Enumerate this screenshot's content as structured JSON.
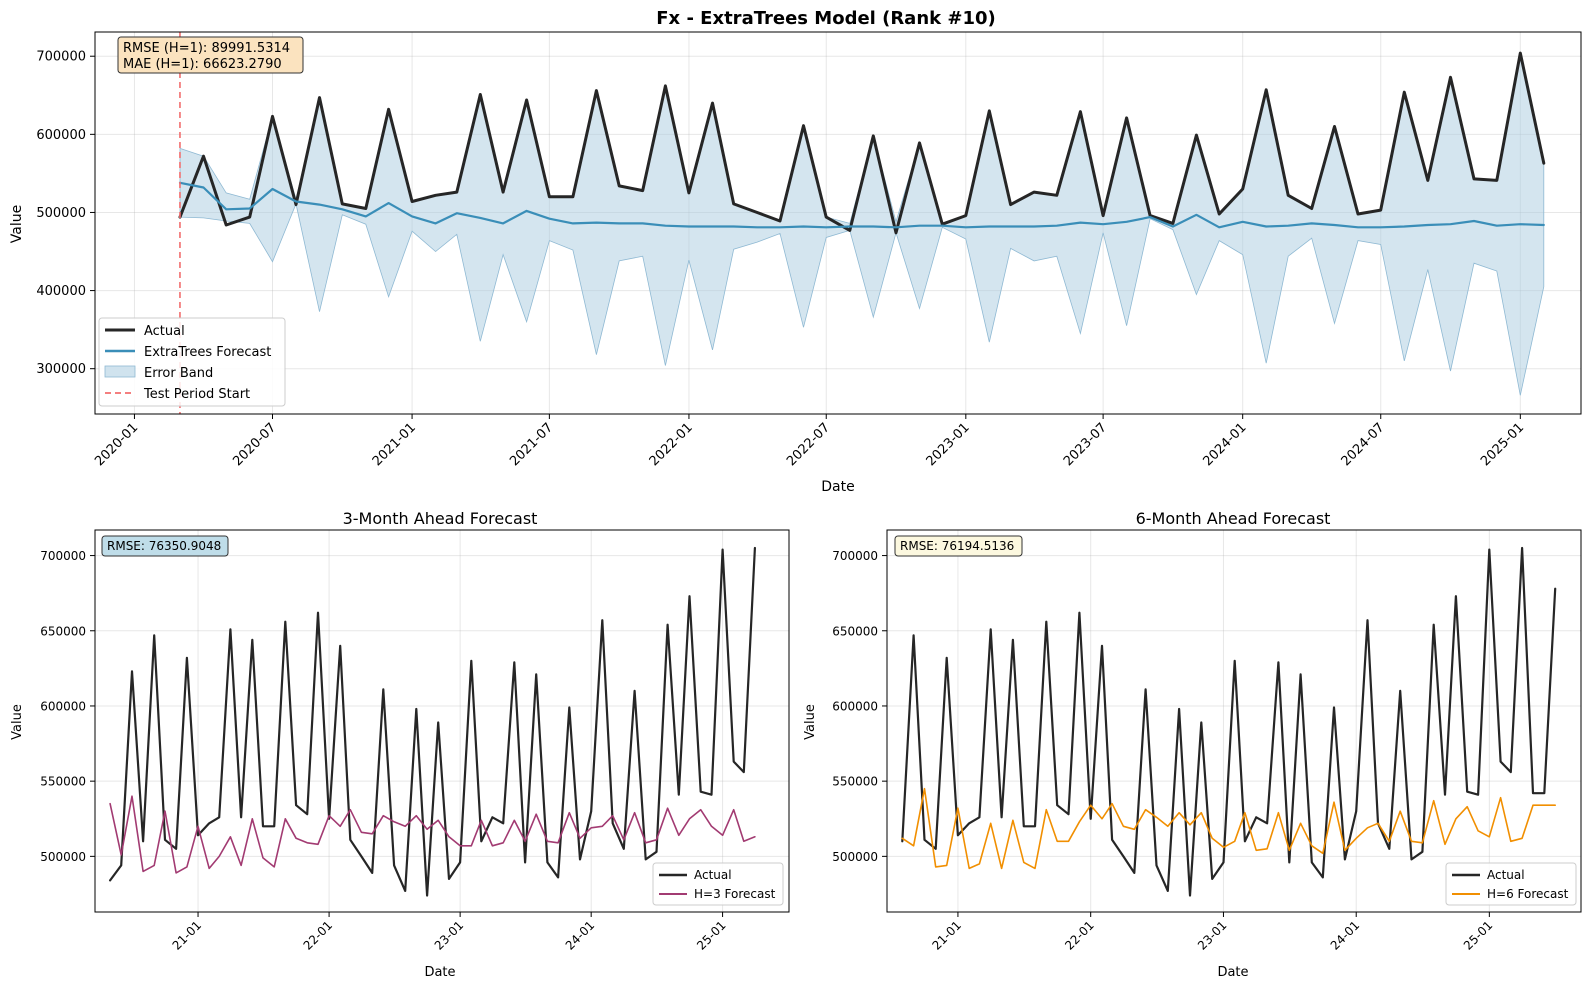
{
  "chart_data": [
    {
      "type": "line",
      "title": "Fx - ExtraTrees Model (Rank #10)",
      "xlabel": "Date",
      "ylabel": "Value",
      "xlim": [
        "2019-11-10",
        "2025-03-22"
      ],
      "ylim": [
        242000,
        731000
      ],
      "x_ticks": [
        "2020-01",
        "2020-07",
        "2021-01",
        "2021-07",
        "2022-01",
        "2022-07",
        "2023-01",
        "2023-07",
        "2024-01",
        "2024-07",
        "2025-01"
      ],
      "y_ticks": [
        300000,
        400000,
        500000,
        600000,
        700000
      ],
      "grid": true,
      "legend_position": "lower-left",
      "legend": [
        "Actual",
        "ExtraTrees Forecast",
        "Error Band",
        "Test Period Start"
      ],
      "annotation": [
        "RMSE (H=1): 89991.5314",
        "MAE (H=1): 66623.2790"
      ],
      "test_period_start": "2020-03",
      "x": [
        "2020-03",
        "2020-04",
        "2020-05",
        "2020-06",
        "2020-07",
        "2020-08",
        "2020-09",
        "2020-10",
        "2020-11",
        "2020-12",
        "2021-01",
        "2021-02",
        "2021-03",
        "2021-04",
        "2021-05",
        "2021-06",
        "2021-07",
        "2021-08",
        "2021-09",
        "2021-10",
        "2021-11",
        "2021-12",
        "2022-01",
        "2022-02",
        "2022-03",
        "2022-04",
        "2022-05",
        "2022-06",
        "2022-07",
        "2022-08",
        "2022-09",
        "2022-10",
        "2022-11",
        "2022-12",
        "2023-01",
        "2023-02",
        "2023-03",
        "2023-04",
        "2023-05",
        "2023-06",
        "2023-07",
        "2023-08",
        "2023-09",
        "2023-10",
        "2023-11",
        "2023-12",
        "2024-01",
        "2024-02",
        "2024-03",
        "2024-04",
        "2024-05",
        "2024-06",
        "2024-07",
        "2024-08",
        "2024-09",
        "2024-10",
        "2024-11",
        "2024-12",
        "2025-01",
        "2025-02"
      ],
      "series": [
        {
          "name": "Actual",
          "color": "#262626",
          "values": [
            494000,
            572000,
            484000,
            494000,
            623000,
            510000,
            647000,
            511000,
            505000,
            632000,
            514000,
            522000,
            526000,
            651000,
            526000,
            644000,
            520000,
            520000,
            656000,
            534000,
            528000,
            662000,
            525000,
            640000,
            511000,
            500000,
            489000,
            611000,
            494000,
            477000,
            598000,
            474000,
            589000,
            485000,
            496000,
            630000,
            510000,
            526000,
            522000,
            629000,
            496000,
            621000,
            496000,
            486000,
            599000,
            498000,
            530000,
            657000,
            522000,
            505000,
            610000,
            498000,
            503000,
            654000,
            541000,
            673000,
            543000,
            541000,
            704000,
            563000
          ]
        },
        {
          "name": "ExtraTrees Forecast",
          "color": "#3a8eb8",
          "values": [
            538000,
            532000,
            504000,
            505000,
            530000,
            514000,
            510000,
            504000,
            495000,
            512000,
            495000,
            486000,
            499000,
            493000,
            486000,
            502000,
            492000,
            486000,
            487000,
            486000,
            486000,
            483000,
            482000,
            482000,
            482000,
            481000,
            481000,
            482000,
            481000,
            482000,
            482000,
            481000,
            483000,
            483000,
            481000,
            482000,
            482000,
            482000,
            483000,
            487000,
            485000,
            488000,
            494000,
            482000,
            497000,
            481000,
            488000,
            482000,
            483000,
            486000,
            484000,
            481000,
            481000,
            482000,
            484000,
            485000,
            489000,
            483000,
            485000,
            484000
          ]
        },
        {
          "name": "Error Band",
          "color": "#a9cce0",
          "lower": [
            494000,
            493000,
            489000,
            486000,
            437000,
            511000,
            373000,
            497000,
            485000,
            392000,
            476000,
            450000,
            472000,
            335000,
            446000,
            360000,
            464000,
            452000,
            318000,
            438000,
            444000,
            304000,
            439000,
            324000,
            453000,
            462000,
            473000,
            353000,
            468000,
            477000,
            366000,
            474000,
            377000,
            481000,
            466000,
            334000,
            454000,
            438000,
            444000,
            345000,
            474000,
            355000,
            492000,
            478000,
            395000,
            464000,
            446000,
            307000,
            444000,
            467000,
            358000,
            464000,
            459000,
            310000,
            427000,
            297000,
            435000,
            425000,
            266000,
            405000
          ],
          "upper": [
            582000,
            572000,
            525000,
            517000,
            623000,
            517000,
            647000,
            511000,
            505000,
            632000,
            514000,
            522000,
            526000,
            651000,
            526000,
            644000,
            520000,
            520000,
            656000,
            534000,
            528000,
            662000,
            525000,
            640000,
            511000,
            500000,
            489000,
            611000,
            494000,
            486000,
            598000,
            488000,
            589000,
            485000,
            496000,
            630000,
            510000,
            526000,
            522000,
            629000,
            496000,
            621000,
            496000,
            486000,
            599000,
            498000,
            530000,
            657000,
            522000,
            505000,
            610000,
            498000,
            503000,
            654000,
            541000,
            673000,
            543000,
            541000,
            704000,
            563000
          ]
        }
      ]
    },
    {
      "type": "line",
      "title": "3-Month Ahead Forecast",
      "xlabel": "Date",
      "ylabel": "Value",
      "xlim": [
        "2020-03-20",
        "2025-07-05"
      ],
      "ylim": [
        463000,
        717000
      ],
      "x_ticks": [
        "21-01",
        "22-01",
        "23-01",
        "24-01",
        "25-01"
      ],
      "y_ticks": [
        500000,
        550000,
        600000,
        650000,
        700000
      ],
      "grid": true,
      "legend_position": "lower-right",
      "legend": [
        "Actual",
        "H=3 Forecast"
      ],
      "annotation": "RMSE: 76350.9048",
      "x": [
        "2020-05",
        "2020-06",
        "2020-07",
        "2020-08",
        "2020-09",
        "2020-10",
        "2020-11",
        "2020-12",
        "2021-01",
        "2021-02",
        "2021-03",
        "2021-04",
        "2021-05",
        "2021-06",
        "2021-07",
        "2021-08",
        "2021-09",
        "2021-10",
        "2021-11",
        "2021-12",
        "2022-01",
        "2022-02",
        "2022-03",
        "2022-04",
        "2022-05",
        "2022-06",
        "2022-07",
        "2022-08",
        "2022-09",
        "2022-10",
        "2022-11",
        "2022-12",
        "2023-01",
        "2023-02",
        "2023-03",
        "2023-04",
        "2023-05",
        "2023-06",
        "2023-07",
        "2023-08",
        "2023-09",
        "2023-10",
        "2023-11",
        "2023-12",
        "2024-01",
        "2024-02",
        "2024-03",
        "2024-04",
        "2024-05",
        "2024-06",
        "2024-07",
        "2024-08",
        "2024-09",
        "2024-10",
        "2024-11",
        "2024-12",
        "2025-01",
        "2025-02",
        "2025-03",
        "2025-04"
      ],
      "series": [
        {
          "name": "Actual",
          "color": "#262626",
          "values": [
            484000,
            494000,
            623000,
            510000,
            647000,
            511000,
            505000,
            632000,
            514000,
            522000,
            526000,
            651000,
            526000,
            644000,
            520000,
            520000,
            656000,
            534000,
            528000,
            662000,
            525000,
            640000,
            511000,
            500000,
            489000,
            611000,
            494000,
            477000,
            598000,
            474000,
            589000,
            485000,
            496000,
            630000,
            510000,
            526000,
            522000,
            629000,
            496000,
            621000,
            496000,
            486000,
            599000,
            498000,
            530000,
            657000,
            522000,
            505000,
            610000,
            498000,
            503000,
            654000,
            541000,
            673000,
            543000,
            541000,
            704000,
            563000,
            556000,
            705000
          ]
        },
        {
          "name": "H=3 Forecast",
          "color": "#a23b72",
          "values": [
            535000,
            501000,
            540000,
            490000,
            494000,
            530000,
            489000,
            493000,
            520000,
            492000,
            500000,
            513000,
            494000,
            525000,
            499000,
            493000,
            525000,
            512000,
            509000,
            508000,
            527000,
            520000,
            531000,
            516000,
            515000,
            527000,
            523000,
            520000,
            527000,
            518000,
            524000,
            513000,
            507000,
            507000,
            524000,
            507000,
            509000,
            524000,
            510000,
            528000,
            510000,
            509000,
            529000,
            512000,
            519000,
            520000,
            527000,
            511000,
            529000,
            509000,
            511000,
            532000,
            514000,
            525000,
            531000,
            520000,
            514000,
            531000,
            510000,
            513000
          ]
        }
      ]
    },
    {
      "type": "line",
      "title": "6-Month Ahead Forecast",
      "xlabel": "Date",
      "ylabel": "Value",
      "xlim": [
        "2020-06-20",
        "2025-09-10"
      ],
      "ylim": [
        463000,
        717000
      ],
      "x_ticks": [
        "21-01",
        "22-01",
        "23-01",
        "24-01",
        "25-01"
      ],
      "y_ticks": [
        500000,
        550000,
        600000,
        650000,
        700000
      ],
      "grid": true,
      "legend_position": "lower-right",
      "legend": [
        "Actual",
        "H=6 Forecast"
      ],
      "annotation": "RMSE: 76194.5136",
      "x": [
        "2020-08",
        "2020-09",
        "2020-10",
        "2020-11",
        "2020-12",
        "2021-01",
        "2021-02",
        "2021-03",
        "2021-04",
        "2021-05",
        "2021-06",
        "2021-07",
        "2021-08",
        "2021-09",
        "2021-10",
        "2021-11",
        "2021-12",
        "2022-01",
        "2022-02",
        "2022-03",
        "2022-04",
        "2022-05",
        "2022-06",
        "2022-07",
        "2022-08",
        "2022-09",
        "2022-10",
        "2022-11",
        "2022-12",
        "2023-01",
        "2023-02",
        "2023-03",
        "2023-04",
        "2023-05",
        "2023-06",
        "2023-07",
        "2023-08",
        "2023-09",
        "2023-10",
        "2023-11",
        "2023-12",
        "2024-01",
        "2024-02",
        "2024-03",
        "2024-04",
        "2024-05",
        "2024-06",
        "2024-07",
        "2024-08",
        "2024-09",
        "2024-10",
        "2024-11",
        "2024-12",
        "2025-01",
        "2025-02",
        "2025-03",
        "2025-04",
        "2025-05",
        "2025-06",
        "2025-07"
      ],
      "series": [
        {
          "name": "Actual",
          "color": "#262626",
          "values": [
            510000,
            647000,
            511000,
            505000,
            632000,
            514000,
            522000,
            526000,
            651000,
            526000,
            644000,
            520000,
            520000,
            656000,
            534000,
            528000,
            662000,
            525000,
            640000,
            511000,
            500000,
            489000,
            611000,
            494000,
            477000,
            598000,
            474000,
            589000,
            485000,
            496000,
            630000,
            510000,
            526000,
            522000,
            629000,
            496000,
            621000,
            496000,
            486000,
            599000,
            498000,
            530000,
            657000,
            522000,
            505000,
            610000,
            498000,
            503000,
            654000,
            541000,
            673000,
            543000,
            541000,
            704000,
            563000,
            556000,
            705000,
            542000,
            542000,
            678000
          ]
        },
        {
          "name": "H=6 Forecast",
          "color": "#f18f01",
          "values": [
            512000,
            507000,
            545000,
            493000,
            494000,
            532000,
            492000,
            495000,
            522000,
            492000,
            524000,
            496000,
            492000,
            531000,
            510000,
            510000,
            523000,
            534000,
            525000,
            535000,
            520000,
            518000,
            531000,
            526000,
            520000,
            529000,
            521000,
            529000,
            512000,
            506000,
            510000,
            529000,
            504000,
            505000,
            529000,
            504000,
            522000,
            507000,
            502000,
            536000,
            504000,
            512000,
            519000,
            522000,
            510000,
            530000,
            510000,
            509000,
            537000,
            508000,
            525000,
            533000,
            517000,
            513000,
            539000,
            510000,
            512000,
            534000,
            534000,
            534000
          ]
        }
      ]
    }
  ]
}
